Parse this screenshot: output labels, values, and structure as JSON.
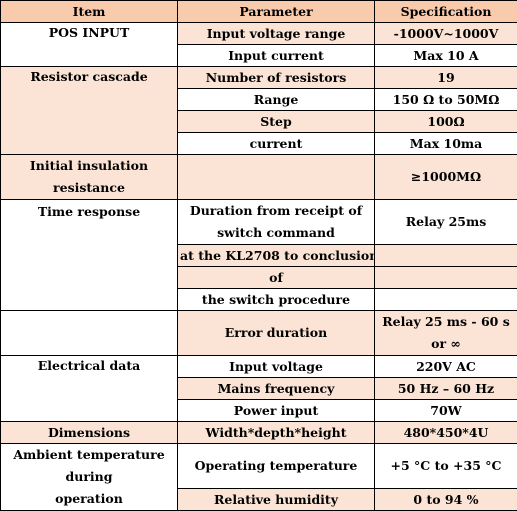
{
  "headers": {
    "item": "Item",
    "parameter": "Parameter",
    "specification": "Specification"
  },
  "rows": {
    "pos_input": "POS INPUT",
    "input_voltage_range": "Input voltage range",
    "input_voltage_range_spec": "-1000V~1000V",
    "input_current": "Input current",
    "input_current_spec": "Max 10 A",
    "resistor_cascade": "Resistor cascade",
    "number_of_resistors": "Number of resistors",
    "number_of_resistors_spec": "19",
    "range": "Range",
    "range_spec": "150 Ω to 50MΩ",
    "step": "Step",
    "step_spec": "100Ω",
    "current": "current",
    "current_spec": "Max 10ma",
    "initial_insulation_line1": "Initial insulation",
    "initial_insulation_line2": "resistance",
    "initial_insulation_spec": "≥1000MΩ",
    "time_response": "Time response",
    "duration_line1": "Duration from receipt of",
    "duration_line2": "switch command",
    "duration_line3": "at the KL2708 to conclusion",
    "duration_line4": "of",
    "duration_line5": "the switch procedure",
    "duration_spec": "Relay 25ms",
    "error_duration": "Error duration",
    "error_duration_spec_line1": "Relay 25 ms - 60 s",
    "error_duration_spec_line2": "or ∞",
    "electrical_data": "Electrical data",
    "input_voltage": "Input voltage",
    "input_voltage_spec": "220V AC",
    "mains_frequency": "Mains frequency",
    "mains_frequency_spec": "50 Hz – 60 Hz",
    "power_input": "Power input",
    "power_input_spec": "70W",
    "dimensions": "Dimensions",
    "dimensions_param": "Width*depth*height",
    "dimensions_spec": "480*450*4U",
    "ambient_line1": "Ambient temperature",
    "ambient_line2": "during",
    "ambient_line3": "operation",
    "operating_temperature": "Operating temperature",
    "operating_temperature_spec": "+5 °C to +35 °C",
    "relative_humidity": "Relative humidity",
    "relative_humidity_spec": "0 to 94 %"
  }
}
